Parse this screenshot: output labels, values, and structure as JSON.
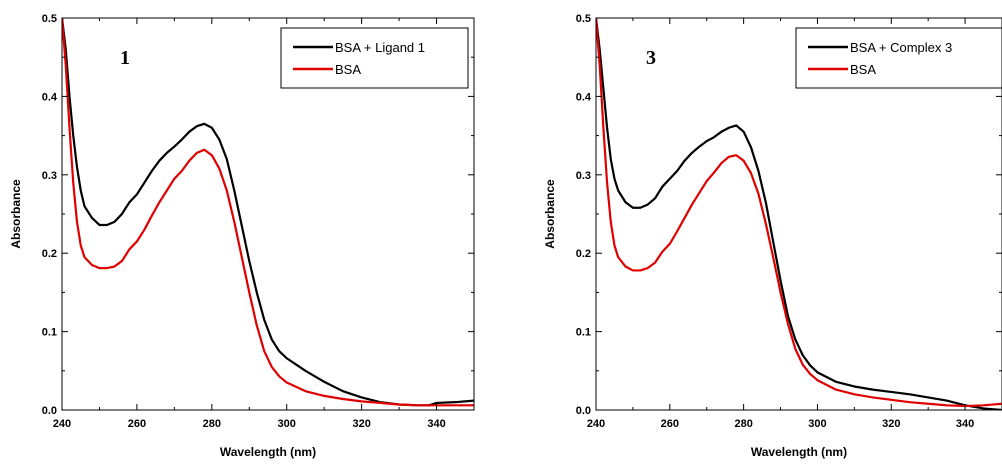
{
  "chart_data": [
    {
      "type": "line",
      "panel_label": "1",
      "xlabel": "Wavelength (nm)",
      "ylabel": "Absorbance",
      "xlim": [
        240,
        350
      ],
      "ylim": [
        0.0,
        0.5
      ],
      "xticks": [
        "240",
        "260",
        "280",
        "300",
        "320",
        "340"
      ],
      "yticks": [
        "0.0",
        "0.1",
        "0.2",
        "0.3",
        "0.4",
        "0.5"
      ],
      "grid": false,
      "legend": "top-right",
      "series": [
        {
          "name": "BSA + Ligand 1",
          "color": "#000000",
          "x": [
            240,
            241,
            242,
            243,
            244,
            245,
            246,
            248,
            250,
            252,
            254,
            256,
            258,
            260,
            262,
            264,
            266,
            268,
            270,
            272,
            274,
            276,
            278,
            280,
            282,
            284,
            286,
            288,
            290,
            292,
            294,
            296,
            298,
            300,
            305,
            310,
            315,
            320,
            325,
            330,
            335,
            338,
            340,
            345,
            350
          ],
          "y": [
            0.5,
            0.46,
            0.4,
            0.35,
            0.31,
            0.28,
            0.26,
            0.245,
            0.236,
            0.236,
            0.24,
            0.25,
            0.265,
            0.275,
            0.29,
            0.305,
            0.318,
            0.328,
            0.336,
            0.345,
            0.355,
            0.362,
            0.365,
            0.36,
            0.345,
            0.32,
            0.28,
            0.235,
            0.19,
            0.15,
            0.115,
            0.09,
            0.075,
            0.066,
            0.05,
            0.036,
            0.024,
            0.016,
            0.01,
            0.007,
            0.006,
            0.006,
            0.009,
            0.01,
            0.012
          ]
        },
        {
          "name": "BSA",
          "color": "#e00000",
          "x": [
            240,
            241,
            242,
            243,
            244,
            245,
            246,
            248,
            250,
            252,
            254,
            256,
            258,
            260,
            262,
            264,
            266,
            268,
            270,
            272,
            274,
            276,
            278,
            280,
            282,
            284,
            286,
            288,
            290,
            292,
            294,
            296,
            298,
            300,
            305,
            310,
            315,
            320,
            325,
            330,
            335,
            340,
            345,
            350
          ],
          "y": [
            0.5,
            0.44,
            0.36,
            0.29,
            0.24,
            0.21,
            0.195,
            0.185,
            0.181,
            0.181,
            0.183,
            0.19,
            0.205,
            0.215,
            0.23,
            0.248,
            0.265,
            0.28,
            0.295,
            0.305,
            0.318,
            0.328,
            0.332,
            0.325,
            0.308,
            0.28,
            0.24,
            0.195,
            0.15,
            0.108,
            0.075,
            0.055,
            0.043,
            0.035,
            0.024,
            0.018,
            0.014,
            0.011,
            0.009,
            0.007,
            0.006,
            0.006,
            0.006,
            0.006
          ]
        }
      ]
    },
    {
      "type": "line",
      "panel_label": "3",
      "xlabel": "Wavelength (nm)",
      "ylabel": "Absorbance",
      "xlim": [
        240,
        350
      ],
      "ylim": [
        0.0,
        0.5
      ],
      "xticks": [
        "240",
        "260",
        "280",
        "300",
        "320",
        "340"
      ],
      "yticks": [
        "0.0",
        "0.1",
        "0.2",
        "0.3",
        "0.4",
        "0.5"
      ],
      "grid": false,
      "legend": "top-right",
      "series": [
        {
          "name": "BSA + Complex 3",
          "color": "#000000",
          "x": [
            240,
            241,
            242,
            243,
            244,
            245,
            246,
            248,
            250,
            252,
            254,
            256,
            258,
            260,
            262,
            264,
            266,
            268,
            270,
            272,
            274,
            276,
            278,
            280,
            282,
            284,
            286,
            288,
            290,
            292,
            294,
            296,
            298,
            300,
            305,
            310,
            315,
            320,
            325,
            330,
            335,
            340,
            345,
            350
          ],
          "y": [
            0.5,
            0.46,
            0.41,
            0.36,
            0.32,
            0.295,
            0.28,
            0.265,
            0.258,
            0.258,
            0.262,
            0.27,
            0.285,
            0.295,
            0.305,
            0.318,
            0.328,
            0.336,
            0.343,
            0.348,
            0.355,
            0.36,
            0.363,
            0.355,
            0.335,
            0.305,
            0.265,
            0.215,
            0.165,
            0.12,
            0.09,
            0.07,
            0.057,
            0.048,
            0.036,
            0.03,
            0.026,
            0.023,
            0.02,
            0.016,
            0.012,
            0.006,
            0.002,
            0.0
          ]
        },
        {
          "name": "BSA",
          "color": "#e00000",
          "x": [
            240,
            241,
            242,
            243,
            244,
            245,
            246,
            248,
            250,
            252,
            254,
            256,
            258,
            260,
            262,
            264,
            266,
            268,
            270,
            272,
            274,
            276,
            278,
            280,
            282,
            284,
            286,
            288,
            290,
            292,
            294,
            296,
            298,
            300,
            305,
            310,
            315,
            320,
            325,
            330,
            335,
            340,
            345,
            350
          ],
          "y": [
            0.5,
            0.44,
            0.36,
            0.29,
            0.24,
            0.21,
            0.195,
            0.183,
            0.178,
            0.178,
            0.181,
            0.188,
            0.202,
            0.212,
            0.228,
            0.245,
            0.262,
            0.277,
            0.292,
            0.303,
            0.315,
            0.323,
            0.325,
            0.318,
            0.302,
            0.276,
            0.238,
            0.195,
            0.15,
            0.11,
            0.078,
            0.058,
            0.046,
            0.038,
            0.026,
            0.02,
            0.016,
            0.013,
            0.01,
            0.008,
            0.006,
            0.005,
            0.006,
            0.008
          ]
        }
      ]
    }
  ]
}
